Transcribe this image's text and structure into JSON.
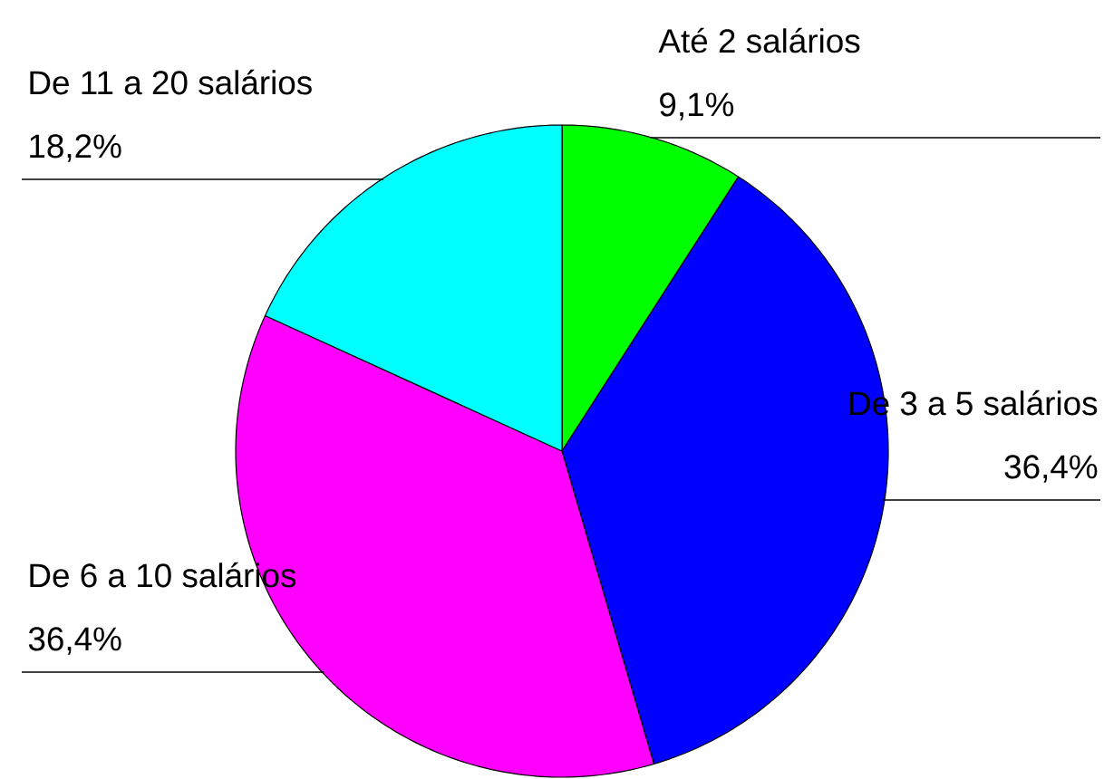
{
  "chart_data": {
    "type": "pie",
    "categories": [
      "Até 2 salários",
      "De 3 a 5 salários",
      "De 6 a 10 salários",
      "De 11 a 20 salários"
    ],
    "values": [
      9.1,
      36.4,
      36.4,
      18.2
    ],
    "value_labels": [
      "9,1%",
      "36,4%",
      "36,4%",
      "18,2%"
    ],
    "colors": [
      "#00ff00",
      "#0000ff",
      "#ff00ff",
      "#00ffff"
    ]
  }
}
